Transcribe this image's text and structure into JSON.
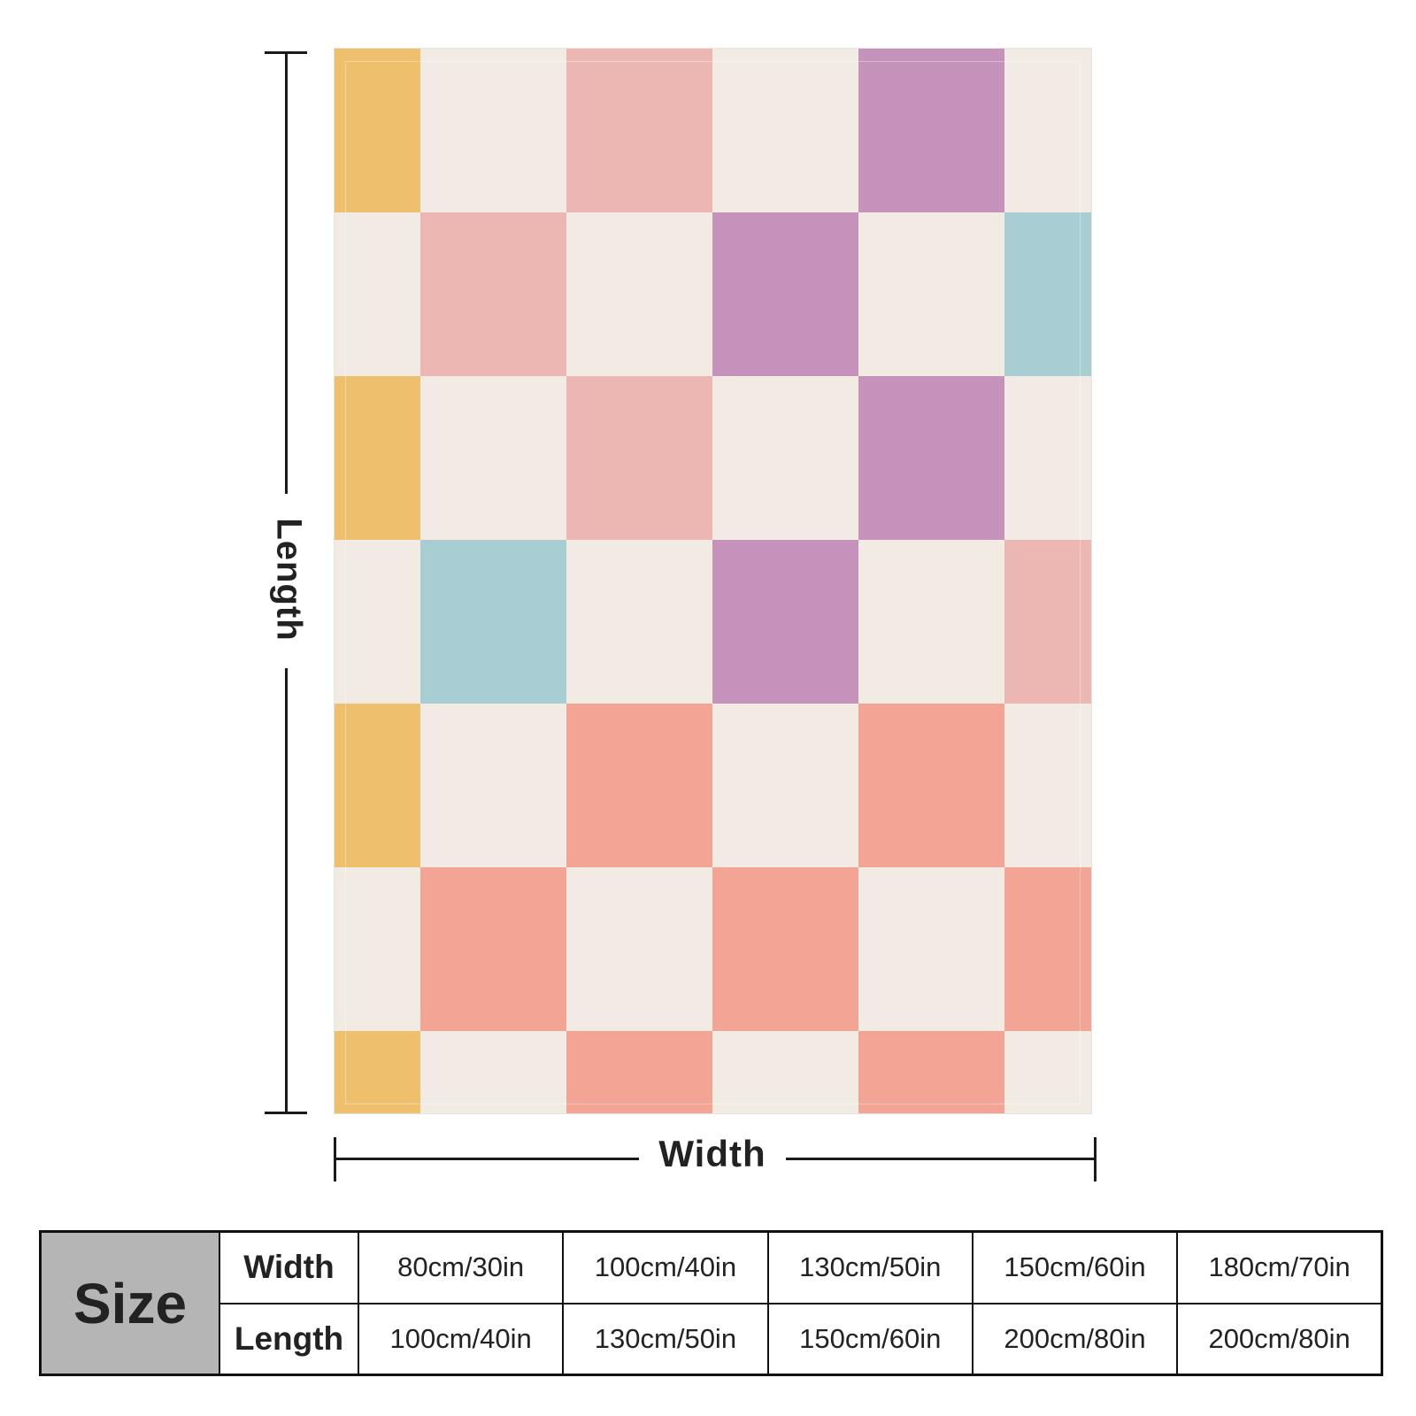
{
  "blanket": {
    "colors": {
      "yellow": "#eebf6d",
      "cream": "#f1ebe3",
      "pink": "#ecb7b2",
      "purple": "#c592bb",
      "teal": "#a8cdd2",
      "salmon": "#f2a594"
    },
    "grid": [
      [
        "yellow",
        "cream",
        "pink",
        "cream",
        "purple",
        "cream"
      ],
      [
        "cream",
        "pink",
        "cream",
        "purple",
        "cream",
        "teal"
      ],
      [
        "yellow",
        "cream",
        "pink",
        "cream",
        "purple",
        "cream"
      ],
      [
        "cream",
        "teal",
        "cream",
        "purple",
        "cream",
        "pink"
      ],
      [
        "yellow",
        "cream",
        "salmon",
        "cream",
        "salmon",
        "cream"
      ],
      [
        "cream",
        "salmon",
        "cream",
        "salmon",
        "cream",
        "salmon"
      ],
      [
        "yellow",
        "cream",
        "salmon",
        "cream",
        "salmon",
        "cream"
      ]
    ]
  },
  "dimensions": {
    "length_label": "Length",
    "width_label": "Width"
  },
  "size_table": {
    "header": "Size",
    "rows": [
      {
        "label": "Width",
        "values": [
          "80cm/30in",
          "100cm/40in",
          "130cm/50in",
          "150cm/60in",
          "180cm/70in"
        ]
      },
      {
        "label": "Length",
        "values": [
          "100cm/40in",
          "130cm/50in",
          "150cm/60in",
          "200cm/80in",
          "200cm/80in"
        ]
      }
    ]
  }
}
